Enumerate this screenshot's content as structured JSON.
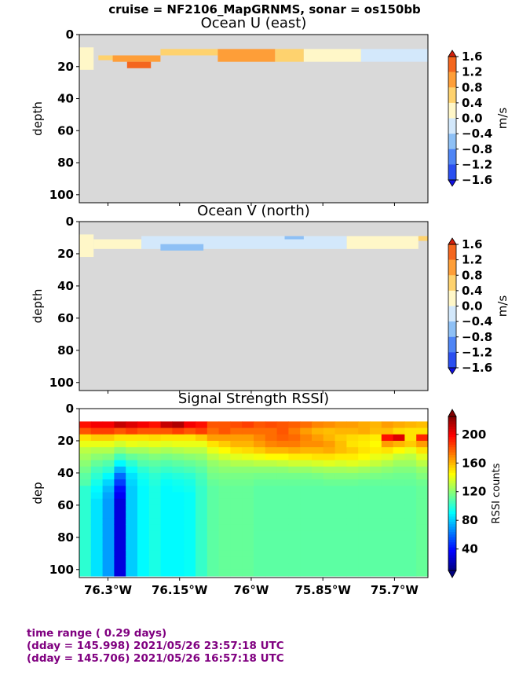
{
  "suptitle": "cruise = NF2106_MapGRNMS,  sonar = os150bb",
  "footer": {
    "line1": "time range ( 0.29 days)",
    "line2": "(dday = 145.998) 2021/05/26 23:57:18 UTC",
    "line3": "(dday = 145.706) 2021/05/26 16:57:18 UTC"
  },
  "colors": {
    "nodata": "#d9d9d9",
    "velocity_levels": [
      "#1010e0",
      "#2a4ff0",
      "#4f85f5",
      "#8ec0f5",
      "#d3e8fb",
      "#fff7c8",
      "#fed26e",
      "#fe9e38",
      "#f4661e",
      "#d4200c"
    ],
    "jet_stops": [
      "#00007f",
      "#0000ff",
      "#007fff",
      "#00ffff",
      "#7fff7f",
      "#ffff00",
      "#ff7f00",
      "#ff0000",
      "#7f0000"
    ]
  },
  "chart_data": [
    {
      "type": "heatmap",
      "title": "Ocean U (east)",
      "ylabel": "depth",
      "xlabel": "",
      "ylim": [
        105,
        0
      ],
      "yticks": [
        "0",
        "20",
        "40",
        "60",
        "80",
        "100"
      ],
      "xlim": [
        -76.36,
        -75.63
      ],
      "xticks": [
        -76.3,
        -76.15,
        -76.0,
        -75.85,
        -75.7
      ],
      "colorbar": {
        "label": "m/s",
        "ticks": [
          "1.6",
          "1.2",
          "0.8",
          "0.4",
          "0.0",
          "−0.4",
          "−0.8",
          "−1.2",
          "−1.6"
        ],
        "range": [
          -1.6,
          1.6
        ]
      },
      "bands": [
        {
          "x_from": -76.36,
          "x_to": -76.33,
          "depth_from": 8,
          "depth_to": 22,
          "value": 0.1
        },
        {
          "x_from": -76.32,
          "x_to": -76.22,
          "depth_from": 13,
          "depth_to": 16,
          "value": 0.5
        },
        {
          "x_from": -76.29,
          "x_to": -76.19,
          "depth_from": 13,
          "depth_to": 17,
          "value": 0.9
        },
        {
          "x_from": -76.26,
          "x_to": -76.21,
          "depth_from": 17,
          "depth_to": 21,
          "value": 1.3
        },
        {
          "x_from": -76.19,
          "x_to": -76.07,
          "depth_from": 9,
          "depth_to": 13,
          "value": 0.5
        },
        {
          "x_from": -76.07,
          "x_to": -75.95,
          "depth_from": 9,
          "depth_to": 17,
          "value": 0.9
        },
        {
          "x_from": -75.95,
          "x_to": -75.89,
          "depth_from": 9,
          "depth_to": 17,
          "value": 0.5
        },
        {
          "x_from": -75.89,
          "x_to": -75.77,
          "depth_from": 9,
          "depth_to": 17,
          "value": 0.1
        },
        {
          "x_from": -75.77,
          "x_to": -75.63,
          "depth_from": 9,
          "depth_to": 17,
          "value": -0.2
        }
      ]
    },
    {
      "type": "heatmap",
      "title": "Ocean V (north)",
      "ylabel": "depth",
      "xlabel": "",
      "ylim": [
        105,
        0
      ],
      "yticks": [
        "0",
        "20",
        "40",
        "60",
        "80",
        "100"
      ],
      "xlim": [
        -76.36,
        -75.63
      ],
      "xticks": [
        -76.3,
        -76.15,
        -76.0,
        -75.85,
        -75.7
      ],
      "colorbar": {
        "label": "m/s",
        "ticks": [
          "1.6",
          "1.2",
          "0.8",
          "0.4",
          "0.0",
          "−0.4",
          "−0.8",
          "−1.2",
          "−1.6"
        ],
        "range": [
          -1.6,
          1.6
        ]
      },
      "bands": [
        {
          "x_from": -76.36,
          "x_to": -76.33,
          "depth_from": 8,
          "depth_to": 22,
          "value": 0.1
        },
        {
          "x_from": -76.33,
          "x_to": -76.23,
          "depth_from": 11,
          "depth_to": 17,
          "value": 0.1
        },
        {
          "x_from": -76.23,
          "x_to": -75.8,
          "depth_from": 9,
          "depth_to": 17,
          "value": -0.2
        },
        {
          "x_from": -76.19,
          "x_to": -76.1,
          "depth_from": 14,
          "depth_to": 18,
          "value": -0.6
        },
        {
          "x_from": -75.93,
          "x_to": -75.89,
          "depth_from": 9,
          "depth_to": 11,
          "value": -0.6
        },
        {
          "x_from": -75.8,
          "x_to": -75.65,
          "depth_from": 9,
          "depth_to": 17,
          "value": 0.1
        },
        {
          "x_from": -75.65,
          "x_to": -75.63,
          "depth_from": 9,
          "depth_to": 12,
          "value": 0.5
        }
      ]
    },
    {
      "type": "heatmap",
      "title": "Signal Strength RSSI)",
      "ylabel": "dep",
      "xlabel": "",
      "ylim": [
        105,
        0
      ],
      "yticks": [
        "0",
        "20",
        "40",
        "60",
        "80",
        "100"
      ],
      "xlim": [
        -76.36,
        -75.63
      ],
      "xticks": [
        -76.3,
        -76.15,
        -76.0,
        -75.85,
        -75.7
      ],
      "xticklabels": [
        "76.3°W",
        "76.15°W",
        "76°W",
        "75.85°W",
        "75.7°W"
      ],
      "colorbar": {
        "label": "RSSI counts",
        "ticks": [
          "200",
          "160",
          "120",
          "80",
          "40"
        ],
        "tick_values": [
          200,
          160,
          120,
          80,
          40
        ],
        "range": [
          10,
          225
        ]
      },
      "depth_bins_top": 8,
      "depth_bin_size": 4,
      "column_profiles": [
        [
          195,
          180,
          150,
          140,
          130,
          125,
          120,
          115,
          110,
          108,
          100,
          100,
          100,
          100,
          100,
          100,
          100,
          100,
          100,
          100,
          100,
          100,
          100,
          100
        ],
        [
          200,
          185,
          155,
          140,
          128,
          120,
          112,
          105,
          100,
          95,
          90,
          88,
          85,
          85,
          85,
          85,
          85,
          85,
          85,
          85,
          85,
          85,
          85,
          85
        ],
        [
          200,
          185,
          155,
          140,
          128,
          118,
          108,
          100,
          90,
          82,
          76,
          72,
          70,
          70,
          70,
          70,
          70,
          70,
          70,
          70,
          70,
          70,
          70,
          70
        ],
        [
          210,
          180,
          150,
          135,
          120,
          105,
          90,
          75,
          60,
          50,
          40,
          35,
          30,
          30,
          30,
          30,
          30,
          30,
          30,
          30,
          30,
          30,
          30,
          30
        ],
        [
          205,
          185,
          150,
          140,
          125,
          112,
          100,
          92,
          85,
          82,
          80,
          80,
          80,
          80,
          80,
          80,
          80,
          80,
          80,
          80,
          80,
          80,
          80,
          80
        ],
        [
          200,
          180,
          150,
          138,
          125,
          115,
          108,
          100,
          95,
          92,
          90,
          90,
          90,
          90,
          90,
          90,
          90,
          90,
          90,
          90,
          90,
          90,
          90,
          90
        ],
        [
          195,
          180,
          152,
          140,
          128,
          118,
          110,
          105,
          100,
          98,
          96,
          96,
          96,
          96,
          96,
          96,
          96,
          96,
          96,
          96,
          96,
          96,
          96,
          96
        ],
        [
          210,
          180,
          150,
          138,
          126,
          116,
          108,
          102,
          96,
          92,
          90,
          90,
          90,
          90,
          90,
          90,
          90,
          90,
          90,
          90,
          90,
          90,
          90,
          90
        ],
        [
          215,
          185,
          150,
          140,
          128,
          118,
          110,
          104,
          98,
          94,
          92,
          90,
          90,
          90,
          90,
          90,
          90,
          90,
          90,
          90,
          90,
          90,
          90,
          90
        ],
        [
          200,
          180,
          150,
          140,
          130,
          120,
          112,
          106,
          100,
          96,
          94,
          92,
          92,
          92,
          92,
          92,
          92,
          92,
          92,
          92,
          92,
          92,
          92,
          92
        ],
        [
          195,
          185,
          155,
          140,
          130,
          122,
          115,
          110,
          106,
          104,
          102,
          102,
          102,
          102,
          102,
          102,
          102,
          102,
          102,
          102,
          102,
          102,
          102,
          102
        ],
        [
          180,
          175,
          165,
          150,
          140,
          130,
          122,
          118,
          115,
          112,
          110,
          110,
          110,
          110,
          110,
          110,
          110,
          110,
          110,
          110,
          110,
          110,
          110,
          110
        ],
        [
          180,
          180,
          165,
          155,
          145,
          135,
          125,
          120,
          116,
          114,
          112,
          112,
          112,
          112,
          112,
          112,
          112,
          112,
          112,
          112,
          112,
          112,
          112,
          112
        ],
        [
          182,
          175,
          165,
          160,
          150,
          138,
          128,
          120,
          116,
          114,
          112,
          112,
          112,
          112,
          112,
          112,
          112,
          112,
          112,
          112,
          112,
          112,
          112,
          112
        ],
        [
          185,
          175,
          165,
          160,
          152,
          140,
          128,
          120,
          116,
          114,
          112,
          112,
          112,
          112,
          112,
          112,
          112,
          112,
          112,
          112,
          112,
          112,
          112,
          112
        ],
        [
          180,
          175,
          170,
          165,
          155,
          142,
          130,
          120,
          115,
          112,
          110,
          110,
          110,
          110,
          110,
          110,
          110,
          110,
          110,
          110,
          110,
          110,
          110,
          110
        ],
        [
          182,
          175,
          175,
          170,
          160,
          145,
          130,
          120,
          115,
          112,
          110,
          110,
          110,
          110,
          110,
          110,
          110,
          110,
          110,
          110,
          110,
          110,
          110,
          110
        ],
        [
          180,
          180,
          178,
          172,
          160,
          145,
          132,
          120,
          115,
          112,
          110,
          110,
          110,
          110,
          110,
          110,
          110,
          110,
          110,
          110,
          110,
          110,
          110,
          110
        ],
        [
          178,
          172,
          176,
          172,
          162,
          148,
          134,
          122,
          115,
          112,
          110,
          110,
          110,
          110,
          110,
          110,
          110,
          110,
          110,
          110,
          110,
          110,
          110,
          110
        ],
        [
          175,
          165,
          170,
          168,
          160,
          148,
          134,
          122,
          115,
          112,
          110,
          110,
          110,
          110,
          110,
          110,
          110,
          110,
          110,
          110,
          110,
          110,
          110,
          110
        ],
        [
          170,
          160,
          165,
          168,
          160,
          150,
          136,
          124,
          116,
          112,
          110,
          110,
          110,
          110,
          110,
          110,
          110,
          110,
          110,
          110,
          110,
          110,
          110,
          110
        ],
        [
          168,
          158,
          160,
          165,
          162,
          150,
          138,
          125,
          118,
          113,
          110,
          110,
          110,
          110,
          110,
          110,
          110,
          110,
          110,
          110,
          110,
          110,
          110,
          110
        ],
        [
          165,
          160,
          155,
          158,
          158,
          148,
          136,
          125,
          118,
          113,
          110,
          110,
          110,
          110,
          110,
          110,
          110,
          110,
          110,
          110,
          110,
          110,
          110,
          110
        ],
        [
          165,
          160,
          152,
          150,
          155,
          148,
          138,
          126,
          118,
          113,
          110,
          110,
          110,
          110,
          110,
          110,
          110,
          110,
          110,
          110,
          110,
          110,
          110,
          110
        ],
        [
          162,
          162,
          150,
          148,
          150,
          145,
          136,
          124,
          117,
          112,
          110,
          110,
          110,
          110,
          110,
          110,
          110,
          110,
          110,
          110,
          110,
          110,
          110,
          110
        ],
        [
          160,
          158,
          148,
          145,
          148,
          140,
          132,
          122,
          116,
          112,
          110,
          110,
          110,
          110,
          110,
          110,
          110,
          110,
          110,
          110,
          110,
          110,
          110,
          110
        ],
        [
          165,
          158,
          195,
          165,
          150,
          138,
          128,
          120,
          115,
          112,
          110,
          110,
          110,
          110,
          110,
          110,
          110,
          110,
          110,
          110,
          110,
          110,
          110,
          110
        ],
        [
          162,
          152,
          205,
          160,
          145,
          132,
          124,
          118,
          114,
          112,
          110,
          110,
          110,
          110,
          110,
          110,
          110,
          110,
          110,
          110,
          110,
          110,
          110,
          110
        ],
        [
          160,
          150,
          150,
          155,
          140,
          130,
          124,
          118,
          114,
          112,
          110,
          110,
          110,
          110,
          110,
          110,
          110,
          110,
          110,
          110,
          110,
          110,
          110,
          110
        ],
        [
          158,
          150,
          190,
          165,
          150,
          138,
          130,
          122,
          118,
          114,
          112,
          112,
          112,
          112,
          112,
          112,
          112,
          112,
          112,
          112,
          112,
          112,
          112,
          112
        ]
      ]
    }
  ]
}
